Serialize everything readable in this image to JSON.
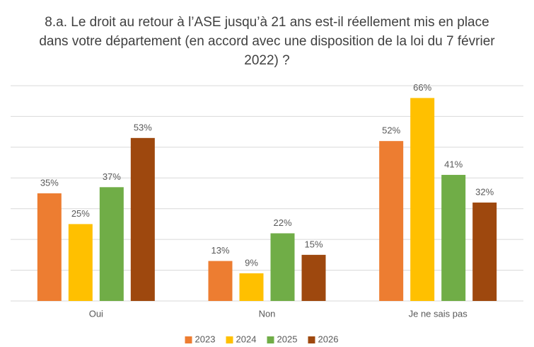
{
  "chart_data": {
    "type": "bar",
    "title": "8.a. Le droit au retour à l’ASE jusqu’à 21 ans est-il réellement mis en place dans votre département (en accord avec une disposition de la loi du 7 février 2022) ?",
    "categories": [
      "Oui",
      "Non",
      "Je ne sais pas"
    ],
    "series": [
      {
        "name": "2023",
        "color": "#ed7d31",
        "values": [
          35,
          13,
          52
        ],
        "value_labels": [
          "35%",
          "13%",
          "52%"
        ]
      },
      {
        "name": "2024",
        "color": "#ffc000",
        "values": [
          25,
          9,
          66
        ],
        "value_labels": [
          "25%",
          "9%",
          "66%"
        ]
      },
      {
        "name": "2025",
        "color": "#70ad47",
        "values": [
          37,
          22,
          41
        ],
        "value_labels": [
          "37%",
          "22%",
          "41%"
        ]
      },
      {
        "name": "2026",
        "color": "#9e480e",
        "values": [
          53,
          15,
          32
        ],
        "value_labels": [
          "53%",
          "15%",
          "32%"
        ]
      }
    ],
    "ylim": [
      0,
      70
    ],
    "yticks": [
      0,
      10,
      20,
      30,
      40,
      50,
      60,
      70
    ],
    "grid": true,
    "legend": "bottom"
  }
}
